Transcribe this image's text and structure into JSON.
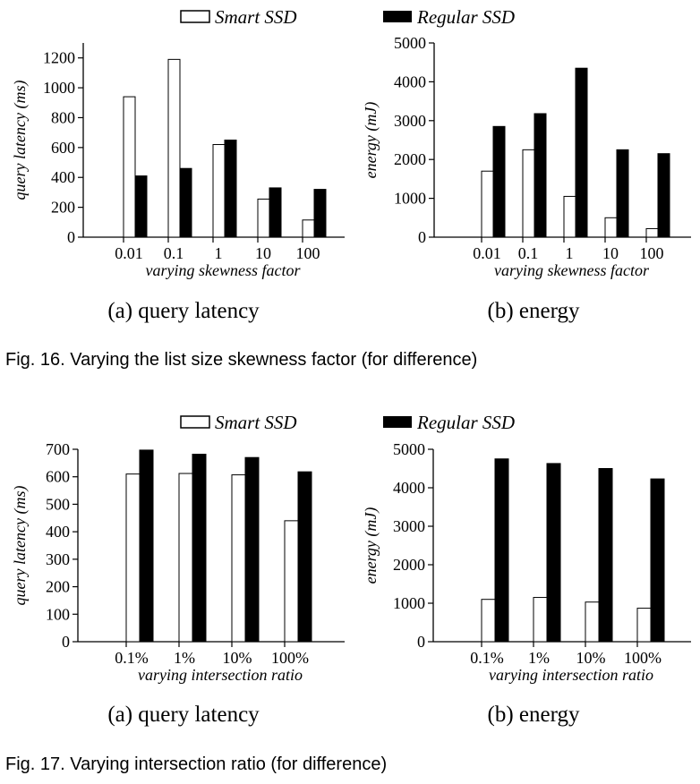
{
  "figures": [
    {
      "caption": "Fig. 16. Varying the list size skewness factor (for difference)",
      "legend": [
        "Smart SSD",
        "Regular SSD"
      ]
    },
    {
      "caption": "Fig. 17. Varying intersection ratio (for difference)",
      "legend": [
        "Smart SSD",
        "Regular SSD"
      ]
    }
  ],
  "colors": {
    "smart": "#ffffff",
    "regular": "#000000",
    "axis": "#000000"
  },
  "chart_data": [
    {
      "type": "bar",
      "subtitle": "(a) query latency",
      "xlabel": "varying skewness factor",
      "ylabel": "query latency (ms)",
      "categories": [
        "0.01",
        "0.1",
        "1",
        "10",
        "100"
      ],
      "ylim": [
        0,
        1300
      ],
      "yticks": [
        0,
        200,
        400,
        600,
        800,
        1000,
        1200
      ],
      "series": [
        {
          "name": "Smart SSD",
          "values": [
            940,
            1190,
            620,
            255,
            115
          ]
        },
        {
          "name": "Regular SSD",
          "values": [
            410,
            460,
            650,
            330,
            320
          ]
        }
      ],
      "grid": false
    },
    {
      "type": "bar",
      "subtitle": "(b) energy",
      "xlabel": "varying skewness factor",
      "ylabel": "energy (mJ)",
      "categories": [
        "0.01",
        "0.1",
        "1",
        "10",
        "100"
      ],
      "ylim": [
        0,
        5000
      ],
      "yticks": [
        0,
        1000,
        2000,
        3000,
        4000,
        5000
      ],
      "series": [
        {
          "name": "Smart SSD",
          "values": [
            1700,
            2250,
            1050,
            500,
            220
          ]
        },
        {
          "name": "Regular SSD",
          "values": [
            2850,
            3180,
            4350,
            2250,
            2150
          ]
        }
      ],
      "grid": false
    },
    {
      "type": "bar",
      "subtitle": "(a) query latency",
      "xlabel": "varying intersection ratio",
      "ylabel": "query latency (ms)",
      "categories": [
        "0.1%",
        "1%",
        "10%",
        "100%"
      ],
      "ylim": [
        0,
        700
      ],
      "yticks": [
        0,
        100,
        200,
        300,
        400,
        500,
        600,
        700
      ],
      "series": [
        {
          "name": "Smart SSD",
          "values": [
            610,
            612,
            607,
            440
          ]
        },
        {
          "name": "Regular SSD",
          "values": [
            697,
            682,
            670,
            618
          ]
        }
      ],
      "grid": false
    },
    {
      "type": "bar",
      "subtitle": "(b) energy",
      "xlabel": "varying intersection ratio",
      "ylabel": "energy (mJ)",
      "categories": [
        "0.1%",
        "1%",
        "10%",
        "100%"
      ],
      "ylim": [
        0,
        5000
      ],
      "yticks": [
        0,
        1000,
        2000,
        3000,
        4000,
        5000
      ],
      "series": [
        {
          "name": "Smart SSD",
          "values": [
            1100,
            1150,
            1030,
            870
          ]
        },
        {
          "name": "Regular SSD",
          "values": [
            4750,
            4630,
            4500,
            4230
          ]
        }
      ],
      "grid": false
    }
  ]
}
